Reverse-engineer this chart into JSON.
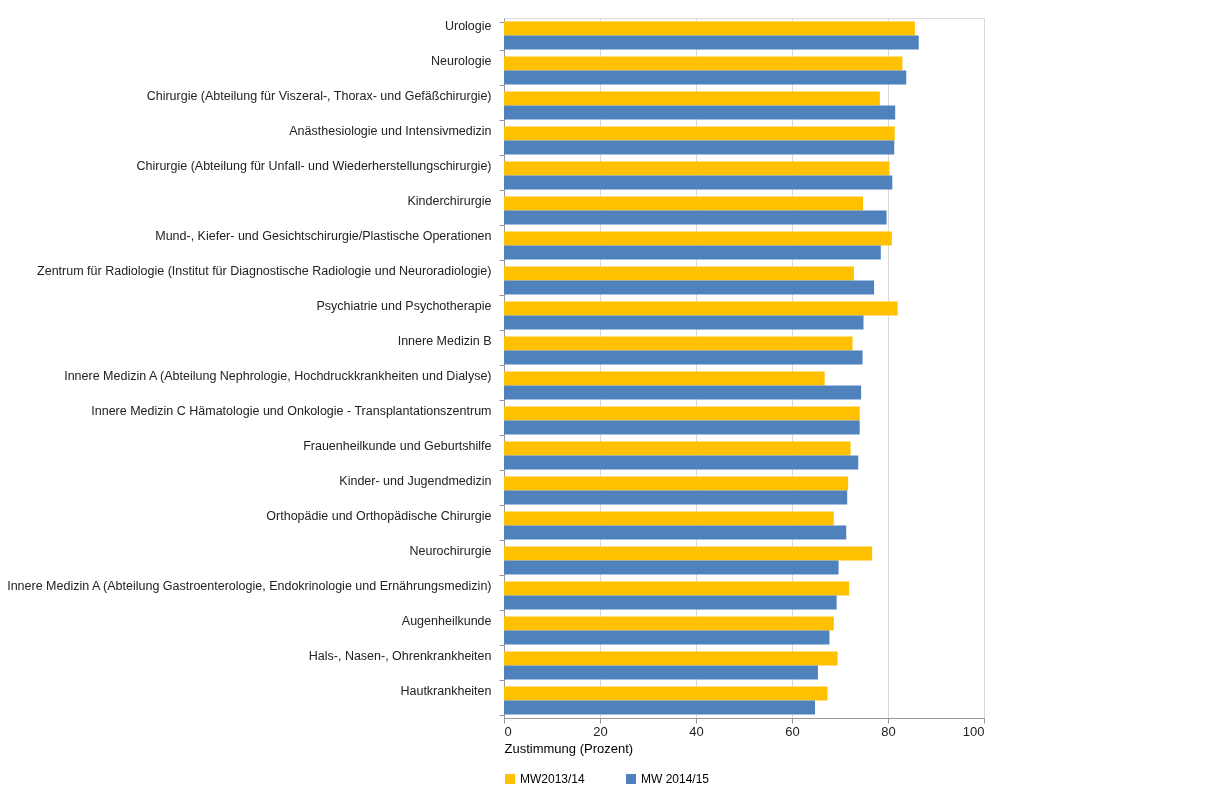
{
  "chart_data": {
    "type": "bar",
    "orientation": "horizontal",
    "categories": [
      "Urologie",
      "Neurologie",
      "Chirurgie (Abteilung für Viszeral-, Thorax- und Gefäßchirurgie)",
      "Anästhesiologie und Intensivmedizin",
      "Chirurgie (Abteilung für Unfall- und Wiederherstellungschirurgie)",
      "Kinderchirurgie",
      "Mund-, Kiefer- und Gesichtschirurgie/Plastische Operationen",
      "Zentrum für Radiologie (Institut für Diagnostische Radiologie und Neuroradiologie)",
      "Psychiatrie und Psychotherapie",
      "Innere Medizin B",
      "Innere Medizin A (Abteilung Nephrologie, Hochdruckkrankheiten und Dialyse)",
      "Innere Medizin C Hämatologie und Onkologie - Transplantationszentrum",
      "Frauenheilkunde und Geburtshilfe",
      "Kinder- und Jugendmedizin",
      "Orthopädie und Orthopädische Chirurgie",
      "Neurochirurgie",
      "Innere Medizin A (Abteilung Gastroenterologie, Endokrinologie und Ernährungsmedizin)",
      "Augenheilkunde",
      "Hals-, Nasen-, Ohrenkrankheiten",
      "Hautkrankheiten"
    ],
    "series": [
      {
        "name": "MW2013/14",
        "color": "#ffc000",
        "values": [
          85.6,
          83.0,
          78.3,
          81.4,
          80.3,
          74.8,
          80.8,
          72.9,
          82.0,
          72.6,
          66.8,
          74.1,
          72.2,
          71.7,
          68.7,
          76.7,
          71.9,
          68.7,
          69.5,
          67.4
        ]
      },
      {
        "name": "MW 2014/15",
        "color": "#4f81bd",
        "values": [
          86.4,
          83.8,
          81.5,
          81.3,
          80.9,
          79.7,
          78.5,
          77.1,
          74.9,
          74.7,
          74.4,
          74.1,
          73.8,
          71.5,
          71.3,
          69.7,
          69.3,
          67.8,
          65.4,
          64.8
        ]
      }
    ],
    "xlabel": "Zustimmung (Prozent)",
    "xlim": [
      0,
      100
    ],
    "xticks": [
      0,
      20,
      40,
      60,
      80,
      100
    ],
    "grid": "x",
    "legend": "bottom"
  }
}
